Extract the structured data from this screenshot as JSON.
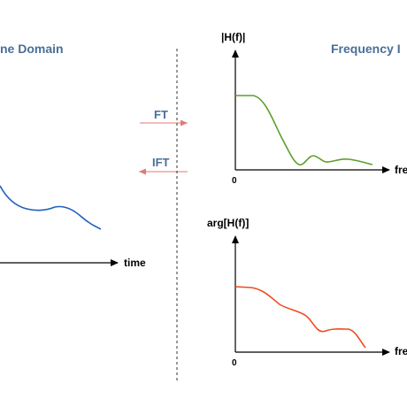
{
  "colors": {
    "title": "#4a6f96",
    "op_label": "#4a6f96",
    "op_arrow": "#e07a75",
    "time_curve": "#1f5fbf",
    "magnitude_curve": "#5b9f2a",
    "phase_curve": "#f04a1e",
    "axis": "#000000",
    "divider": "#333333"
  },
  "time_panel": {
    "title": "ne Domain",
    "x_axis_label": "time"
  },
  "operations": {
    "forward_label": "FT",
    "inverse_label": "IFT"
  },
  "frequency_panel": {
    "title": "Frequency I",
    "magnitude_chart": {
      "y_axis_label": "|H(f)|",
      "x_axis_label": "fre",
      "origin_label": "0"
    },
    "phase_chart": {
      "y_axis_label": "arg[H(f)]",
      "x_axis_label": "fre",
      "origin_label": "0"
    }
  },
  "icons": {
    "axis_arrowheads": "arrowhead-icon"
  }
}
